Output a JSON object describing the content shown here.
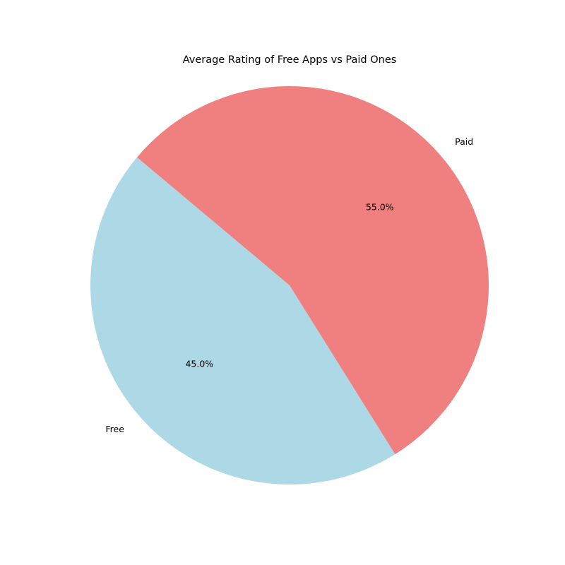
{
  "chart_data": {
    "type": "pie",
    "title": "Average Rating of Free Apps vs Paid Ones",
    "categories": [
      "Free",
      "Paid"
    ],
    "values": [
      45.0,
      55.0
    ],
    "percent_labels": [
      "45.0%",
      "55.0%"
    ],
    "colors": [
      "#add8e6",
      "#f08080"
    ],
    "start_angle_deg": 140,
    "direction": "counterclockwise",
    "legend": "none"
  }
}
